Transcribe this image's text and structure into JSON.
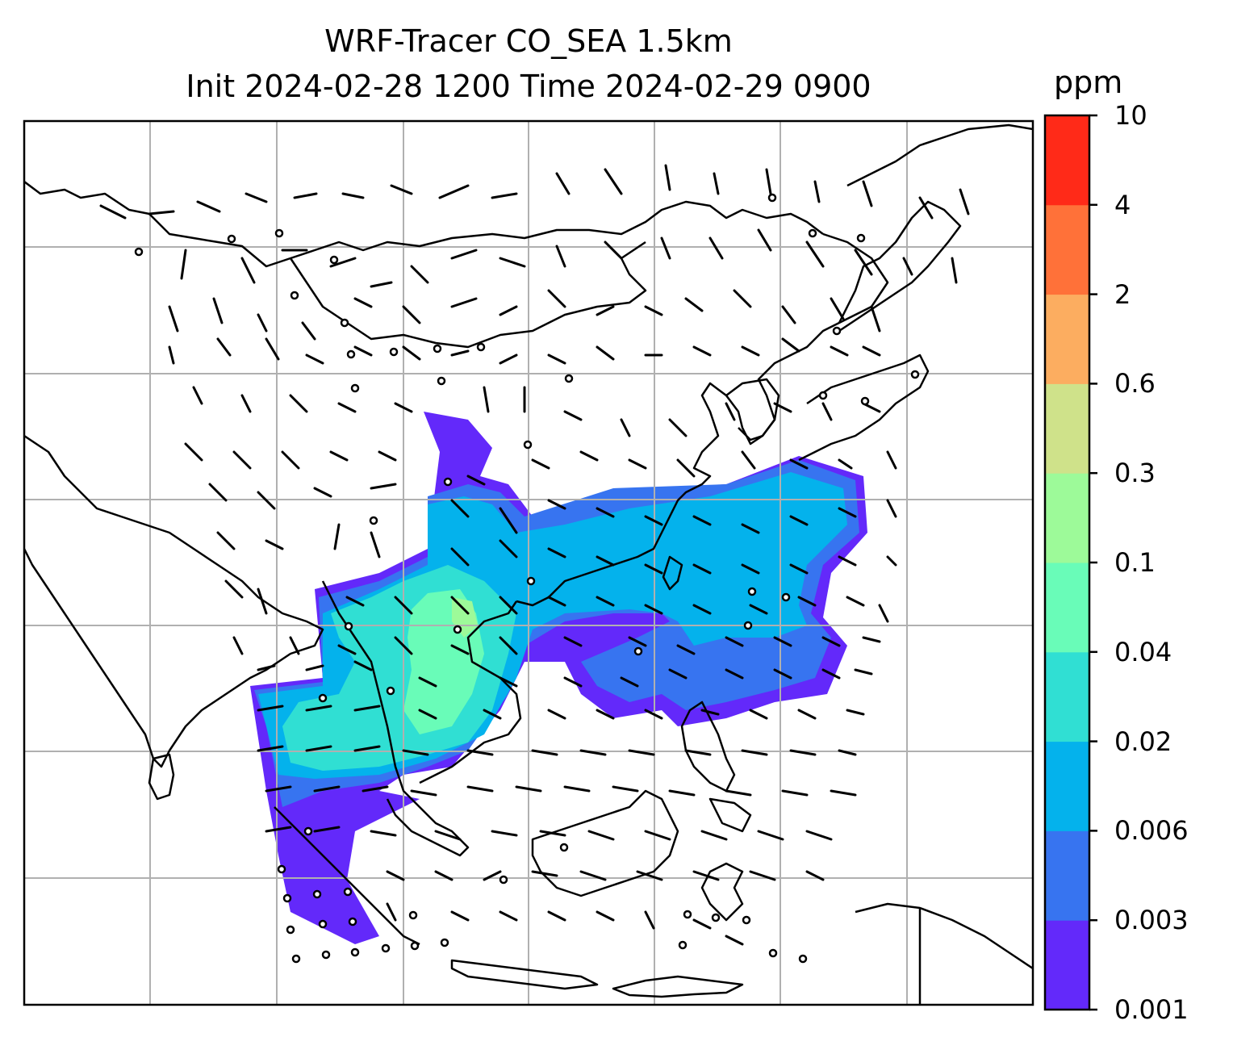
{
  "title": {
    "line1": "WRF-Tracer CO_SEA 1.5km",
    "line2": "Init 2024-02-28 1200 Time 2024-02-29 0900"
  },
  "colorbar": {
    "unit": "ppm",
    "levels": [
      "0.001",
      "0.003",
      "0.006",
      "0.02",
      "0.04",
      "0.1",
      "0.3",
      "0.6",
      "2",
      "4",
      "10"
    ],
    "colors": [
      "#6329fa",
      "#3774f0",
      "#04b2ec",
      "#30dfd3",
      "#69fcb8",
      "#9dfa99",
      "#cfe28a",
      "#fcad60",
      "#ff7139",
      "#ff2a18"
    ]
  },
  "map": {
    "background": "#ffffff",
    "gridline_color": "#b0b0b0",
    "coastline_color": "#000000",
    "overlays": [
      "gridlines",
      "coastlines",
      "country-borders",
      "wind-barbs",
      "calm-wind-circles",
      "co-tracer-fill"
    ]
  }
}
